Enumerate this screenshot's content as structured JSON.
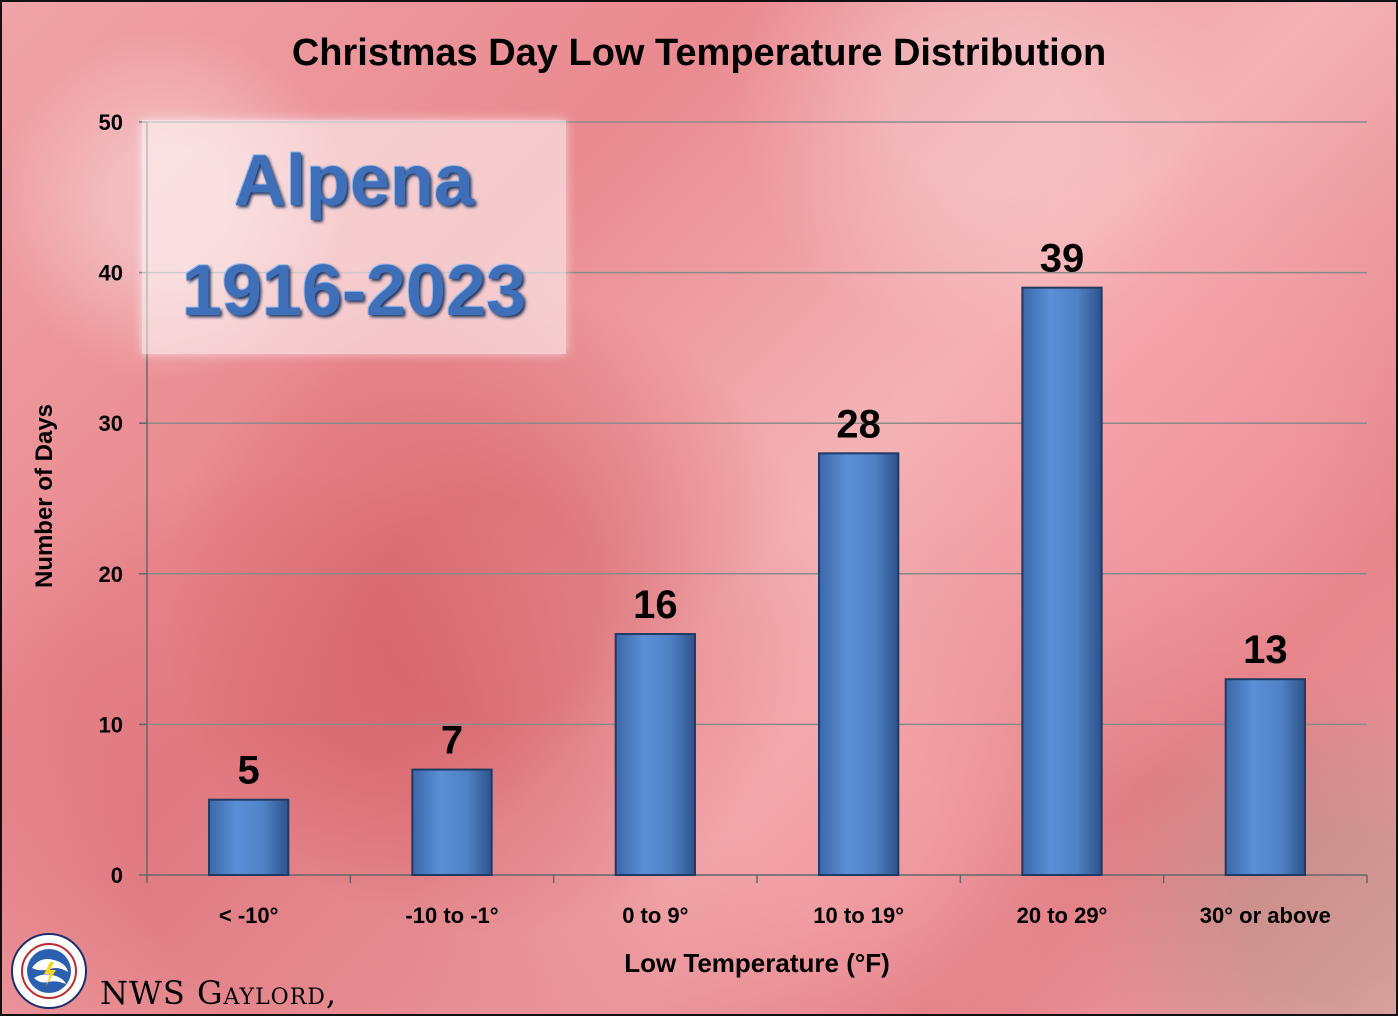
{
  "chart_data": {
    "type": "bar",
    "title": "Christmas Day Low Temperature Distribution",
    "xlabel": "Low Temperature (°F)",
    "ylabel": "Number of Days",
    "categories": [
      "< -10°",
      "-10 to -1°",
      "0 to 9°",
      "10 to 19°",
      "20 to 29°",
      "30° or above"
    ],
    "values": [
      5,
      7,
      16,
      28,
      39,
      13
    ],
    "ylim": [
      0,
      50
    ],
    "yticks": [
      0,
      10,
      20,
      30,
      40,
      50
    ],
    "grid": true,
    "data_labels": true,
    "colors": {
      "bar": "#4f81bd",
      "bar_edge": "#1f3b64",
      "grid": "#8a8a8a"
    }
  },
  "station": {
    "name": "Alpena",
    "years": "1916-2023"
  },
  "footer": {
    "text": "NWS Gaylord,"
  },
  "logo": {
    "icon": "nws-logo-icon"
  }
}
